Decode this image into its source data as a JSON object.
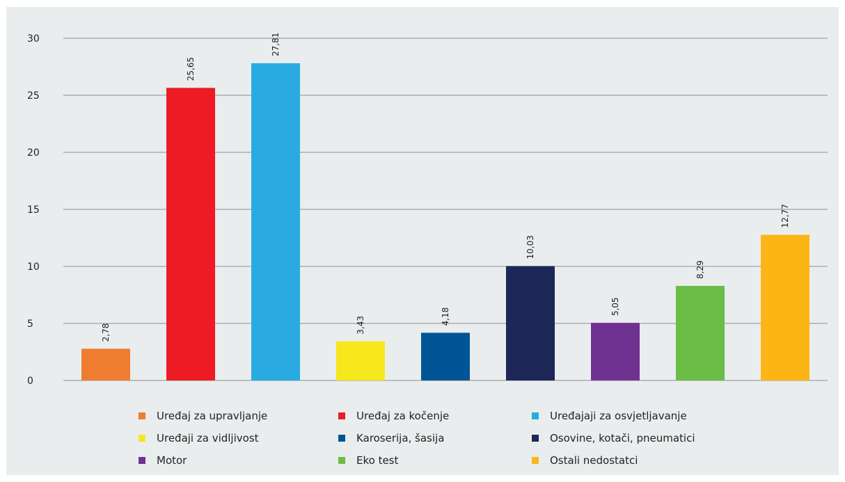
{
  "chart_data": {
    "type": "bar",
    "categories": [
      "Uređaj za upravljanje",
      "Uređaj za kočenje",
      "Uređajaji za osvjetljavanje",
      "Uređaji za vidljivost",
      "Karoserija, šasija",
      "Osovine, kotači, pneumatici",
      "Motor",
      "Eko test",
      "Ostali nedostatci"
    ],
    "values": [
      2.78,
      25.65,
      27.81,
      3.43,
      4.18,
      10.03,
      5.05,
      8.29,
      12.77
    ],
    "value_labels": [
      "2,78",
      "25,65",
      "27,81",
      "3,43",
      "4,18",
      "10,03",
      "5,05",
      "8,29",
      "12,77"
    ],
    "colors": [
      "#ee7d31",
      "#ed1c24",
      "#29abe2",
      "#f5e71b",
      "#005596",
      "#1d2758",
      "#703291",
      "#6bbd45",
      "#fdb515"
    ],
    "ylim": [
      0,
      30
    ],
    "yticks": [
      0,
      5,
      10,
      15,
      20,
      25,
      30
    ],
    "grid": true,
    "legend_position": "bottom",
    "title": "",
    "xlabel": "",
    "ylabel": ""
  },
  "legend": {
    "items": [
      {
        "label": "Uređaj za upravljanje",
        "color": "#ee7d31"
      },
      {
        "label": "Uređaj za kočenje",
        "color": "#ed1c24"
      },
      {
        "label": "Uređajaji za osvjetljavanje",
        "color": "#29abe2"
      },
      {
        "label": "Uređaji za vidljivost",
        "color": "#f5e71b"
      },
      {
        "label": "Karoserija, šasija",
        "color": "#005596"
      },
      {
        "label": "Osovine, kotači, pneumatici",
        "color": "#1d2758"
      },
      {
        "label": "Motor",
        "color": "#703291"
      },
      {
        "label": "Eko test",
        "color": "#6bbd45"
      },
      {
        "label": "Ostali nedostatci",
        "color": "#fdb515"
      }
    ]
  }
}
